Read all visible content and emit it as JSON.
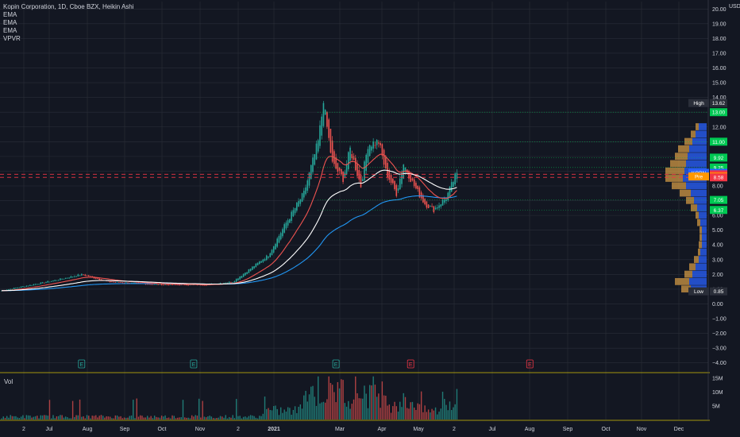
{
  "legend": {
    "title": "Kopin Corporation, 1D, Cboe BZX, Heikin Ashi",
    "indicators": [
      "EMA",
      "EMA",
      "EMA",
      "VPVR"
    ]
  },
  "price_axis": {
    "currency": "USD",
    "ticks": [
      "20.00",
      "19.00",
      "18.00",
      "17.00",
      "16.00",
      "15.00",
      "14.00",
      "13.00",
      "12.00",
      "11.00",
      "10.00",
      "9.00",
      "8.00",
      "7.00",
      "6.00",
      "5.00",
      "4.00",
      "3.00",
      "2.00",
      "1.00",
      "0.00",
      "−1.00",
      "−2.00",
      "−3.00",
      "−4.00"
    ]
  },
  "time_axis": {
    "ticks": [
      "2",
      "Jul",
      "Aug",
      "Sep",
      "Oct",
      "Nov",
      "2",
      "2021",
      "Mar",
      "Apr",
      "May",
      "2",
      "Jul",
      "Aug",
      "Sep",
      "Oct",
      "Nov",
      "Dec"
    ]
  },
  "price_labels": [
    {
      "text": "High",
      "value": 13.62,
      "display": "13.62",
      "color": "#2a2e39",
      "kind": "high"
    },
    {
      "text": "",
      "value": 13.0,
      "display": "13.00",
      "color": "#00c853",
      "kind": "level"
    },
    {
      "text": "",
      "value": 11.0,
      "display": "11.00",
      "color": "#00c853",
      "kind": "level"
    },
    {
      "text": "",
      "value": 9.92,
      "display": "9.92",
      "color": "#00c853",
      "kind": "level"
    },
    {
      "text": "",
      "value": 9.25,
      "display": "9.25",
      "color": "#00c853",
      "kind": "level"
    },
    {
      "text": "KOPN",
      "value": 8.89,
      "display": "8.89",
      "color": "#2962ff",
      "kind": "tag"
    },
    {
      "text": "",
      "value": 8.79,
      "display": "8.79",
      "color": "#f23645",
      "kind": "level"
    },
    {
      "text": "Pre",
      "value": 8.64,
      "display": "8.64",
      "color": "#ff9800",
      "kind": "tag"
    },
    {
      "text": "",
      "value": 8.58,
      "display": "8.58",
      "color": "#f23645",
      "kind": "level"
    },
    {
      "text": "",
      "value": 7.05,
      "display": "7.05",
      "color": "#00c853",
      "kind": "level"
    },
    {
      "text": "",
      "value": 6.37,
      "display": "6.37",
      "color": "#00c853",
      "kind": "level"
    },
    {
      "text": "Low",
      "value": 0.85,
      "display": "0.85",
      "color": "#2a2e39",
      "kind": "low"
    }
  ],
  "volume_pane": {
    "label": "Vol",
    "ticks": [
      "15M",
      "10M",
      "5M"
    ]
  },
  "earnings_markers": [
    {
      "label": "E",
      "date_index": 45,
      "color": "#26a69a"
    },
    {
      "label": "E",
      "date_index": 108,
      "color": "#26a69a"
    },
    {
      "label": "E",
      "date_index": 188,
      "color": "#26a69a"
    },
    {
      "label": "E",
      "date_index": 230,
      "color": "#f23645"
    },
    {
      "label": "E",
      "date_index": 297,
      "color": "#f23645"
    }
  ],
  "colors": {
    "background": "#131722",
    "grid": "#2a2e39",
    "up": "#26a69a",
    "down": "#ef5350",
    "ema_short": "#ef5350",
    "ema_mid": "#ffffff",
    "ema_long": "#2196f3",
    "vpvr_up": "#2962ff",
    "vpvr_down": "#ffb74d",
    "pane_divider": "#d4c20a"
  },
  "chart_data": {
    "type": "candlestick",
    "ylim": [
      -4.5,
      20.5
    ],
    "volume_ylim": [
      0,
      16000000
    ],
    "key_points": [
      {
        "i": 0,
        "p": 0.9
      },
      {
        "i": 30,
        "p": 1.6
      },
      {
        "i": 45,
        "p": 2.0
      },
      {
        "i": 60,
        "p": 1.5
      },
      {
        "i": 90,
        "p": 1.3
      },
      {
        "i": 115,
        "p": 1.3
      },
      {
        "i": 130,
        "p": 1.5
      },
      {
        "i": 140,
        "p": 2.4
      },
      {
        "i": 150,
        "p": 3.3
      },
      {
        "i": 160,
        "p": 5.5
      },
      {
        "i": 170,
        "p": 7.5
      },
      {
        "i": 178,
        "p": 11.0
      },
      {
        "i": 181,
        "p": 13.62
      },
      {
        "i": 186,
        "p": 9.5
      },
      {
        "i": 192,
        "p": 8.5
      },
      {
        "i": 196,
        "p": 10.5
      },
      {
        "i": 202,
        "p": 8.0
      },
      {
        "i": 206,
        "p": 10.8
      },
      {
        "i": 212,
        "p": 11.0
      },
      {
        "i": 216,
        "p": 9.0
      },
      {
        "i": 222,
        "p": 7.5
      },
      {
        "i": 226,
        "p": 9.5
      },
      {
        "i": 232,
        "p": 8.0
      },
      {
        "i": 238,
        "p": 6.8
      },
      {
        "i": 243,
        "p": 6.4
      },
      {
        "i": 250,
        "p": 7.2
      },
      {
        "i": 256,
        "p": 8.89
      }
    ],
    "total_bars": 256,
    "volume_profile": [
      {
        "price": 12.0,
        "up": 10,
        "down": 4
      },
      {
        "price": 11.5,
        "up": 14,
        "down": 6
      },
      {
        "price": 11.0,
        "up": 18,
        "down": 10
      },
      {
        "price": 10.5,
        "up": 22,
        "down": 14
      },
      {
        "price": 10.0,
        "up": 24,
        "down": 16
      },
      {
        "price": 9.5,
        "up": 26,
        "down": 20
      },
      {
        "price": 9.0,
        "up": 28,
        "down": 24
      },
      {
        "price": 8.5,
        "up": 30,
        "down": 22
      },
      {
        "price": 8.0,
        "up": 26,
        "down": 18
      },
      {
        "price": 7.5,
        "up": 20,
        "down": 14
      },
      {
        "price": 7.0,
        "up": 16,
        "down": 10
      },
      {
        "price": 6.5,
        "up": 12,
        "down": 8
      },
      {
        "price": 6.0,
        "up": 10,
        "down": 4
      },
      {
        "price": 5.5,
        "up": 8,
        "down": 4
      },
      {
        "price": 5.0,
        "up": 6,
        "down": 3
      },
      {
        "price": 4.5,
        "up": 6,
        "down": 3
      },
      {
        "price": 4.0,
        "up": 6,
        "down": 4
      },
      {
        "price": 3.5,
        "up": 8,
        "down": 3
      },
      {
        "price": 3.0,
        "up": 10,
        "down": 6
      },
      {
        "price": 2.5,
        "up": 14,
        "down": 8
      },
      {
        "price": 2.0,
        "up": 18,
        "down": 10
      },
      {
        "price": 1.5,
        "up": 22,
        "down": 18
      },
      {
        "price": 1.0,
        "up": 20,
        "down": 12
      }
    ]
  }
}
